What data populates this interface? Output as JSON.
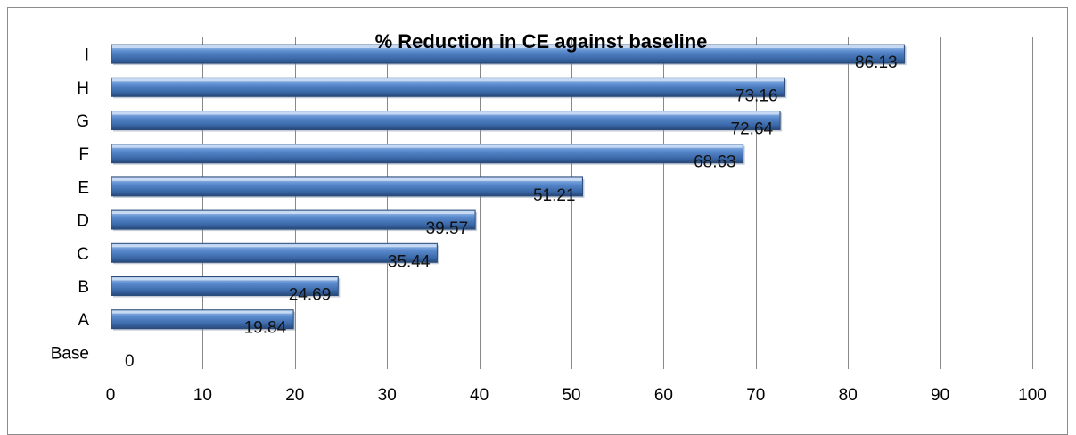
{
  "chart_data": {
    "type": "bar",
    "orientation": "horizontal",
    "title": "% Reduction in CE against baseline",
    "categories": [
      "Base",
      "A",
      "B",
      "C",
      "D",
      "E",
      "F",
      "G",
      "H",
      "I"
    ],
    "values": [
      0,
      19.84,
      24.69,
      35.44,
      39.57,
      51.21,
      68.63,
      72.64,
      73.16,
      86.13
    ],
    "data_labels": [
      "0",
      "19.84",
      "24.69",
      "35.44",
      "39.57",
      "51.21",
      "68.63",
      "72.64",
      "73.16",
      "86.13"
    ],
    "xlim": [
      0,
      100
    ],
    "x_ticks": [
      0,
      10,
      20,
      30,
      40,
      50,
      60,
      70,
      80,
      90,
      100
    ],
    "x_tick_labels": [
      "0",
      "10",
      "20",
      "30",
      "40",
      "50",
      "60",
      "70",
      "80",
      "90",
      "100"
    ],
    "grid": "vertical",
    "legend": "none",
    "colors": {
      "bar": "#4f81bd",
      "bar_dark": "#2c4d7a",
      "bar_light": "#9cbbe3",
      "grid": "#888888",
      "axis": "#888888"
    }
  }
}
